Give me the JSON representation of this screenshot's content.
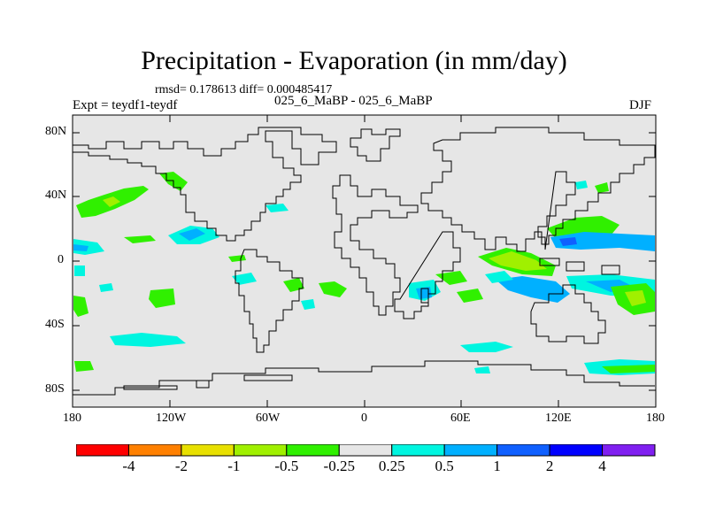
{
  "title": "Precipitation - Evaporation (in mm/day)",
  "stats": "rmsd= 0.178613 diff= 0.000485417",
  "experiment": "Expt = teydf1-teydf",
  "case": "025_6_MaBP - 025_6_MaBP",
  "season": "DJF",
  "lat_ticks": [
    "80N",
    "40N",
    "0",
    "40S",
    "80S"
  ],
  "lon_ticks": [
    "180",
    "120W",
    "60W",
    "0",
    "60E",
    "120E",
    "180"
  ],
  "colorbar": {
    "colors": [
      "#ff0000",
      "#ff8000",
      "#e8e000",
      "#a0f000",
      "#30f000",
      "#e6e6e6",
      "#00f5e0",
      "#00b0ff",
      "#1060ff",
      "#0000ff",
      "#8020f0"
    ],
    "labels": [
      "-4",
      "-2",
      "-1",
      "-0.5",
      "-0.25",
      "0.25",
      "0.5",
      "1",
      "2",
      "4"
    ]
  },
  "map": {
    "background": "#e6e6e6",
    "coastline_color": "#000000"
  }
}
